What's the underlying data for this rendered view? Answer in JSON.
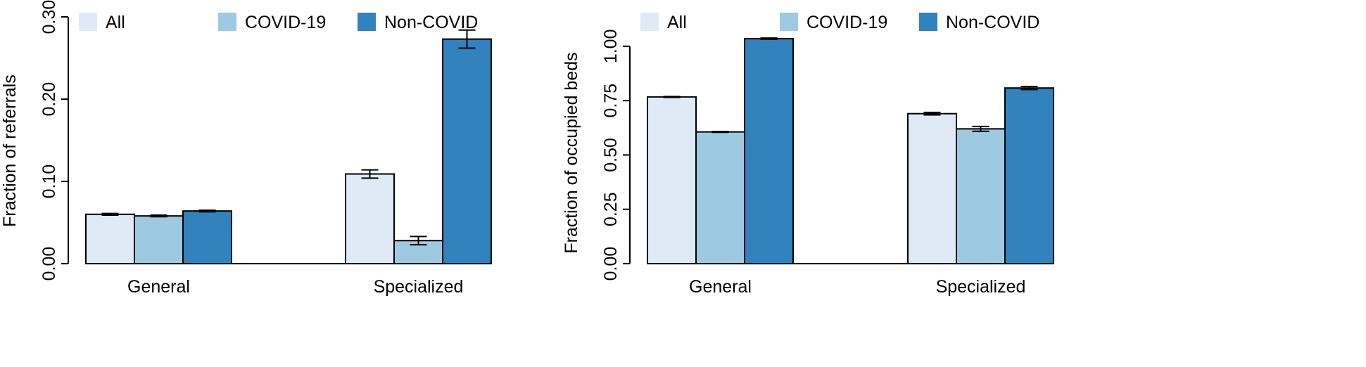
{
  "colors": {
    "All": "#deebf7",
    "COVID-19": "#9ecae1",
    "Non-COVID": "#3182bd",
    "stroke": "#000000"
  },
  "chart_data": [
    {
      "type": "bar",
      "ylabel": "Fraction of referrals",
      "ylim": [
        0,
        0.3
      ],
      "yticks": [
        "0.00",
        "0.10",
        "0.20",
        "0.30"
      ],
      "categories": [
        "General",
        "Specialized"
      ],
      "legend": {
        "position": "top",
        "entries": [
          "All",
          "COVID-19",
          "Non-COVID"
        ]
      },
      "series": [
        {
          "name": "All",
          "values": [
            0.06,
            0.109
          ],
          "err_low": [
            0.059,
            0.104
          ],
          "err_high": [
            0.061,
            0.114
          ]
        },
        {
          "name": "COVID-19",
          "values": [
            0.058,
            0.028
          ],
          "err_low": [
            0.057,
            0.023
          ],
          "err_high": [
            0.059,
            0.033
          ]
        },
        {
          "name": "Non-COVID",
          "values": [
            0.064,
            0.273
          ],
          "err_low": [
            0.063,
            0.262
          ],
          "err_high": [
            0.065,
            0.284
          ]
        }
      ]
    },
    {
      "type": "bar",
      "ylabel": "Fraction of occupied beds",
      "ylim": [
        0,
        1.09
      ],
      "yticks": [
        "0.00",
        "0.25",
        "0.50",
        "0.75",
        "1.00"
      ],
      "categories": [
        "General",
        "Specialized"
      ],
      "legend": {
        "position": "top",
        "entries": [
          "All",
          "COVID-19",
          "Non-COVID"
        ]
      },
      "series": [
        {
          "name": "All",
          "values": [
            0.767,
            0.69
          ],
          "err_low": [
            0.765,
            0.684
          ],
          "err_high": [
            0.769,
            0.696
          ]
        },
        {
          "name": "COVID-19",
          "values": [
            0.606,
            0.62
          ],
          "err_low": [
            0.604,
            0.609
          ],
          "err_high": [
            0.608,
            0.631
          ]
        },
        {
          "name": "Non-COVID",
          "values": [
            1.035,
            0.808
          ],
          "err_low": [
            1.032,
            0.801
          ],
          "err_high": [
            1.038,
            0.815
          ]
        }
      ]
    }
  ]
}
